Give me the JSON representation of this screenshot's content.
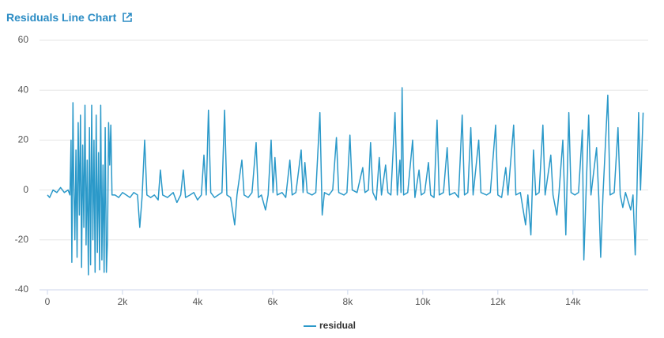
{
  "chart_data": {
    "type": "line",
    "title": "Residuals Line Chart",
    "xlim": [
      0,
      15900
    ],
    "ylim": [
      -40,
      60
    ],
    "xticks": [
      0,
      {
        "value": 2000,
        "label": "2k"
      },
      {
        "value": 4000,
        "label": "4k"
      },
      {
        "value": 6000,
        "label": "6k"
      },
      {
        "value": 8000,
        "label": "8k"
      },
      {
        "value": 10000,
        "label": "10k"
      },
      {
        "value": 12000,
        "label": "12k"
      },
      {
        "value": 14000,
        "label": "14k"
      }
    ],
    "yticks": [
      -40,
      -20,
      0,
      20,
      40,
      60
    ],
    "grid": true,
    "series": [
      {
        "name": "residual",
        "color": "#2b99c9",
        "x": [
          0,
          60,
          150,
          250,
          350,
          450,
          550,
          600,
          630,
          650,
          680,
          700,
          730,
          760,
          790,
          820,
          850,
          880,
          910,
          940,
          970,
          1000,
          1030,
          1060,
          1090,
          1120,
          1150,
          1180,
          1210,
          1240,
          1270,
          1300,
          1330,
          1360,
          1390,
          1420,
          1450,
          1480,
          1510,
          1540,
          1570,
          1600,
          1630,
          1660,
          1690,
          1720,
          1800,
          1900,
          2000,
          2100,
          2200,
          2300,
          2400,
          2460,
          2520,
          2590,
          2650,
          2750,
          2850,
          2950,
          3010,
          3070,
          3200,
          3350,
          3450,
          3550,
          3620,
          3680,
          3800,
          3900,
          4000,
          4100,
          4170,
          4230,
          4290,
          4350,
          4450,
          4550,
          4650,
          4720,
          4780,
          4880,
          4990,
          5050,
          5180,
          5240,
          5350,
          5450,
          5560,
          5620,
          5700,
          5810,
          5880,
          5960,
          6010,
          6060,
          6120,
          6250,
          6350,
          6460,
          6520,
          6620,
          6760,
          6810,
          6860,
          6920,
          7050,
          7150,
          7260,
          7320,
          7380,
          7500,
          7600,
          7700,
          7760,
          7900,
          7980,
          8060,
          8120,
          8250,
          8400,
          8460,
          8550,
          8610,
          8670,
          8760,
          8840,
          8900,
          9010,
          9070,
          9150,
          9260,
          9320,
          9390,
          9420,
          9450,
          9490,
          9600,
          9730,
          9790,
          9900,
          9960,
          10050,
          10150,
          10210,
          10300,
          10380,
          10440,
          10550,
          10650,
          10710,
          10850,
          10950,
          11050,
          11110,
          11200,
          11280,
          11340,
          11490,
          11550,
          11700,
          11800,
          11940,
          12000,
          12100,
          12210,
          12270,
          12420,
          12480,
          12600,
          12740,
          12800,
          12880,
          12950,
          13010,
          13100,
          13200,
          13260,
          13410,
          13470,
          13570,
          13630,
          13730,
          13810,
          13890,
          13950,
          14050,
          14150,
          14250,
          14290,
          14350,
          14420,
          14480,
          14630,
          14690,
          14740,
          14800,
          14930,
          14990,
          15100,
          15200,
          15260,
          15330,
          15400,
          15540,
          15600,
          15660,
          15700,
          15750,
          15800,
          15870
        ],
        "values": [
          -2,
          -3,
          0,
          -1,
          1,
          -1,
          0,
          -2,
          20,
          -29,
          35,
          5,
          -20,
          16,
          -27,
          27,
          -10,
          30,
          -31,
          18,
          -15,
          34,
          -22,
          12,
          -34,
          25,
          -30,
          34,
          -20,
          20,
          -33,
          30,
          -25,
          15,
          -32,
          34,
          -28,
          10,
          -33,
          25,
          -33,
          -20,
          27,
          10,
          26,
          -2,
          -2,
          -3,
          -1,
          -2,
          -3,
          -1,
          -2,
          -15,
          -3,
          20,
          -2,
          -3,
          -2,
          -4,
          8,
          -2,
          -3,
          -1,
          -5,
          -2,
          8,
          -3,
          -2,
          -1,
          -4,
          -2,
          14,
          -2,
          32,
          -1,
          -3,
          -2,
          -1,
          32,
          -2,
          -3,
          -14,
          -2,
          12,
          -2,
          -3,
          -1,
          19,
          -3,
          -2,
          -8,
          -2,
          20,
          -1,
          13,
          -2,
          -1,
          -3,
          12,
          -2,
          -1,
          16,
          -1,
          11,
          -1,
          -2,
          -1,
          31,
          -10,
          -1,
          -2,
          0,
          21,
          -1,
          -2,
          -1,
          22,
          0,
          -1,
          9,
          -1,
          0,
          19,
          -1,
          -4,
          13,
          -2,
          10,
          -1,
          -2,
          31,
          -2,
          12,
          -1,
          41,
          -2,
          -1,
          20,
          -3,
          8,
          -2,
          -1,
          11,
          -2,
          -3,
          28,
          -2,
          -1,
          17,
          -2,
          -1,
          -3,
          30,
          -2,
          -1,
          25,
          -2,
          20,
          -1,
          -2,
          -1,
          26,
          -2,
          -3,
          9,
          -2,
          26,
          -2,
          -1,
          -14,
          -2,
          -18,
          16,
          -2,
          -1,
          26,
          -2,
          14,
          -2,
          -10,
          -1,
          20,
          -18,
          31,
          -1,
          -2,
          -1,
          24,
          -28,
          -1,
          30,
          -2,
          17,
          -3,
          -27,
          -2,
          38,
          -2,
          -1,
          25,
          -2,
          -7,
          -1,
          -8,
          -2,
          -26,
          -5,
          31,
          0,
          31
        ]
      }
    ]
  }
}
